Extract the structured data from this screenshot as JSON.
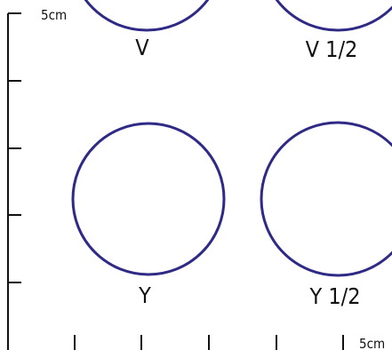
{
  "scale": {
    "vertical_label": "5cm",
    "horizontal_label": "5cm"
  },
  "rings": [
    {
      "id": "v",
      "label": "V"
    },
    {
      "id": "v-half",
      "label": "V 1/2"
    },
    {
      "id": "y",
      "label": "Y"
    },
    {
      "id": "y-half",
      "label": "Y 1/2"
    }
  ],
  "colors": {
    "ring_stroke": "#2e2a85",
    "axis": "#111111",
    "text": "#111111",
    "background": "#ffffff"
  }
}
